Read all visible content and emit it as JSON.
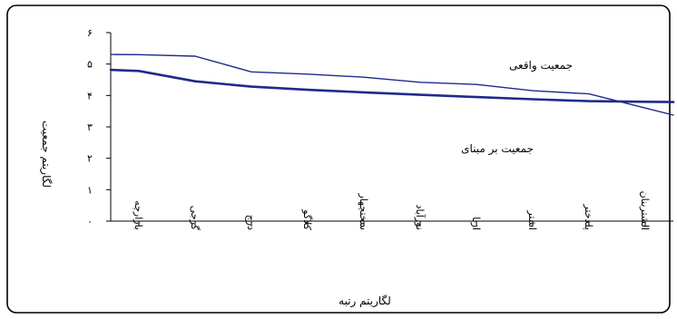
{
  "chart_data": {
    "type": "line",
    "title": "",
    "xlabel": "لگاریتم رتبه",
    "ylabel": "لگاریتم جمعیت",
    "categories": [
      "بازارچه",
      "گرجی",
      "درج",
      "کلاگو",
      "سختچهار",
      "نورآباد",
      "ازنا",
      "اشتر",
      "پلدختر",
      "الشتربنان"
    ],
    "yticks": [
      "۰",
      "۱",
      "۲",
      "۳",
      "۴",
      "۵",
      "۶"
    ],
    "ylim": [
      0,
      6
    ],
    "grid": false,
    "series": [
      {
        "name": "جمعیت واقعی",
        "color": "#1f2a8c",
        "values": [
          5.3,
          5.25,
          4.75,
          4.68,
          4.58,
          4.42,
          4.35,
          4.15,
          4.05,
          3.6
        ]
      },
      {
        "name": "جمعیت بر مبنای",
        "color": "#1f2a8c",
        "values": [
          4.78,
          4.45,
          4.28,
          4.18,
          4.1,
          4.02,
          3.95,
          3.88,
          3.82,
          3.8
        ]
      }
    ]
  }
}
